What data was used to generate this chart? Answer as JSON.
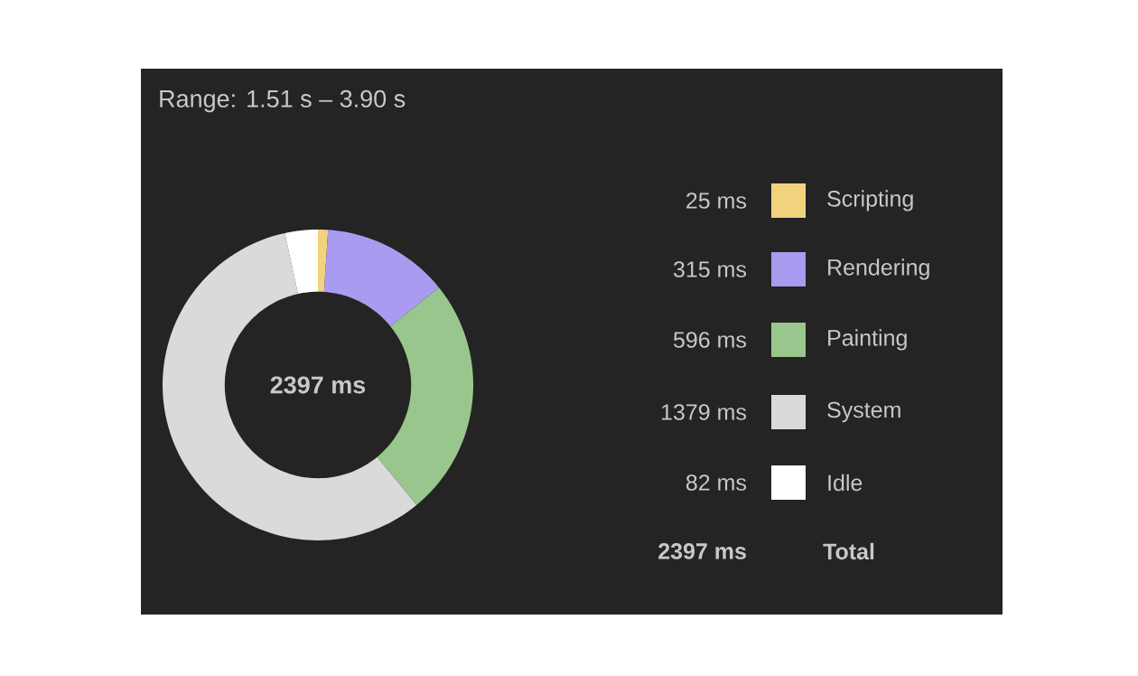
{
  "chart_data": {
    "type": "donut",
    "title": "Range: 1.51 s – 3.90 s",
    "categories": [
      "Scripting",
      "Rendering",
      "Painting",
      "System",
      "Idle"
    ],
    "values": [
      25,
      315,
      596,
      1379,
      82
    ],
    "value_labels": [
      "25 ms",
      "315 ms",
      "596 ms",
      "1379 ms",
      "82 ms"
    ],
    "colors": [
      "#f2d37d",
      "#a99cf0",
      "#99c68c",
      "#dadada",
      "#ffffff"
    ],
    "annotations": [
      "2397 ms",
      "2397 ms",
      "Total"
    ],
    "legend": "right"
  }
}
